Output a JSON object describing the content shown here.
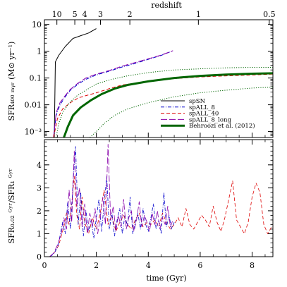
{
  "chart_data": {
    "type": "line",
    "top_axis": {
      "label": "redshift",
      "ticks": [
        {
          "z": 10,
          "t": 0.48,
          "label": "10"
        },
        {
          "z": 5,
          "t": 1.17,
          "label": "5"
        },
        {
          "z": 4,
          "t": 1.55,
          "label": "4"
        },
        {
          "z": 3,
          "t": 2.16,
          "label": "3"
        },
        {
          "z": 2,
          "t": 3.29,
          "label": "2"
        },
        {
          "z": 1,
          "t": 5.93,
          "label": "1"
        },
        {
          "z": 0.5,
          "t": 8.66,
          "label": "0.5"
        }
      ]
    },
    "x_axis": {
      "label": "time (Gyr)",
      "range": [
        0,
        8.8
      ],
      "ticks": [
        0,
        2,
        4,
        6,
        8
      ],
      "tick_labels": [
        "0",
        "2",
        "4",
        "6",
        "8"
      ]
    },
    "panels": [
      {
        "id": "top",
        "y_scale": "log",
        "y_range": [
          0.0006,
          15
        ],
        "y_ticks": [
          {
            "value": 10,
            "label": "10"
          },
          {
            "value": 1,
            "label": "1"
          },
          {
            "value": 0.1,
            "label": "0.1"
          },
          {
            "value": 0.01,
            "label": "0.01"
          },
          {
            "value": 0.001,
            "label": "10⁻³"
          }
        ],
        "ylabel": "SFR₄₀₀ ₘᵧᵣ (M⊙ yr⁻¹)",
        "legend": {
          "position": "bottom-right",
          "entries": [
            {
              "label": "spSN",
              "color": "#000000",
              "dash": "solid",
              "width": 1
            },
            {
              "label": "spALL_8",
              "color": "#0000cc",
              "dash": "dashdot",
              "width": 1
            },
            {
              "label": "spALL_40",
              "color": "#dd0000",
              "dash": "dashed",
              "width": 1
            },
            {
              "label": "spALL_8_long",
              "color": "#8800aa",
              "dash": "longdash",
              "width": 1
            },
            {
              "label": "Behroozi et al. (2012)",
              "color": "#006600",
              "dash": "solid",
              "width": 3
            }
          ]
        },
        "series": [
          {
            "name": "spSN",
            "color": "#000000",
            "dash": "solid",
            "width": 1,
            "x": [
              0.38,
              0.42,
              0.55,
              0.8,
              1.1,
              1.4,
              1.7,
              2.0
            ],
            "y": [
              0.0006,
              0.4,
              0.7,
              1.5,
              3.0,
              3.8,
              4.8,
              7.0
            ]
          },
          {
            "name": "spALL_8",
            "color": "#0000cc",
            "dash": "dashdot",
            "width": 1,
            "x": [
              0.35,
              0.45,
              0.6,
              0.8,
              1.0,
              1.3,
              1.6,
              2.0,
              2.5,
              3.0,
              3.5,
              4.0,
              4.5,
              4.9
            ],
            "y": [
              0.0006,
              0.004,
              0.01,
              0.02,
              0.035,
              0.06,
              0.09,
              0.13,
              0.18,
              0.26,
              0.35,
              0.5,
              0.7,
              1.0
            ]
          },
          {
            "name": "spALL_8_long",
            "color": "#8800aa",
            "dash": "longdash",
            "width": 1,
            "x": [
              0.35,
              0.45,
              0.6,
              0.8,
              1.0,
              1.3,
              1.6,
              2.0,
              2.5,
              3.0,
              3.5,
              4.0,
              4.5,
              4.95
            ],
            "y": [
              0.0006,
              0.005,
              0.012,
              0.022,
              0.038,
              0.065,
              0.1,
              0.14,
              0.19,
              0.28,
              0.38,
              0.52,
              0.72,
              1.05
            ]
          },
          {
            "name": "spALL_40",
            "color": "#dd0000",
            "dash": "dashed",
            "width": 1,
            "x": [
              0.35,
              0.5,
              0.7,
              1.0,
              1.3,
              1.6,
              2.0,
              2.5,
              3.0,
              4.0,
              5.0,
              6.0,
              7.0,
              8.0,
              8.8
            ],
            "y": [
              0.0006,
              0.003,
              0.007,
              0.012,
              0.018,
              0.022,
              0.028,
              0.04,
              0.055,
              0.075,
              0.095,
              0.11,
              0.12,
              0.13,
              0.14
            ]
          },
          {
            "name": "Behroozi et al. (2012)",
            "color": "#006600",
            "dash": "solid",
            "width": 3,
            "x": [
              0.75,
              0.9,
              1.1,
              1.4,
              1.8,
              2.2,
              2.7,
              3.2,
              4.0,
              5.0,
              6.0,
              7.0,
              8.0,
              8.8
            ],
            "y": [
              0.0006,
              0.0015,
              0.004,
              0.008,
              0.015,
              0.025,
              0.04,
              0.055,
              0.075,
              0.1,
              0.12,
              0.135,
              0.145,
              0.15
            ]
          },
          {
            "name": "Behroozi upper",
            "color": "#006600",
            "dash": "dotted",
            "width": 1,
            "x": [
              0.45,
              0.55,
              0.7,
              0.9,
              1.2,
              1.6,
              2.0,
              2.6,
              3.2,
              4.0,
              5.0,
              6.0,
              7.0,
              8.0,
              8.8
            ],
            "y": [
              0.0006,
              0.002,
              0.005,
              0.01,
              0.02,
              0.035,
              0.06,
              0.09,
              0.12,
              0.16,
              0.2,
              0.22,
              0.24,
              0.25,
              0.25
            ]
          },
          {
            "name": "Behroozi lower",
            "color": "#006600",
            "dash": "dotted",
            "width": 1,
            "x": [
              1.75,
              2.0,
              2.3,
              2.7,
              3.2,
              4.0,
              5.0,
              6.0,
              7.0,
              8.0,
              8.8
            ],
            "y": [
              0.0006,
              0.001,
              0.002,
              0.004,
              0.007,
              0.012,
              0.02,
              0.028,
              0.035,
              0.042,
              0.046
            ]
          }
        ]
      },
      {
        "id": "bottom",
        "y_scale": "linear",
        "y_range": [
          0,
          5.1
        ],
        "y_ticks": [
          {
            "value": 0,
            "label": "0"
          },
          {
            "value": 1,
            "label": "1"
          },
          {
            "value": 2,
            "label": "2"
          },
          {
            "value": 3,
            "label": "3"
          },
          {
            "value": 4,
            "label": "4"
          }
        ],
        "ylabel": "SFR₀.₀₂ ᴳʸʳ/SFR₁ ᴳʸʳ",
        "series": [
          {
            "name": "spALL_40",
            "color": "#dd0000",
            "dash": "dashed",
            "width": 0.8,
            "x": [
              0.2,
              0.4,
              0.55,
              0.65,
              0.75,
              0.85,
              0.95,
              1.05,
              1.15,
              1.25,
              1.35,
              1.45,
              1.55,
              1.7,
              1.85,
              2.0,
              2.15,
              2.3,
              2.45,
              2.6,
              2.75,
              2.9,
              3.05,
              3.2,
              3.35,
              3.5,
              3.65,
              3.8,
              3.95,
              4.1,
              4.25,
              4.4,
              4.55,
              4.7,
              4.85,
              5.0,
              5.15,
              5.3,
              5.45,
              5.6,
              5.75,
              5.9,
              6.05,
              6.2,
              6.35,
              6.5,
              6.65,
              6.8,
              6.95,
              7.1,
              7.25,
              7.4,
              7.55,
              7.7,
              7.85,
              8.0,
              8.15,
              8.3,
              8.45,
              8.6,
              8.75
            ],
            "y": [
              0.0,
              0.2,
              0.5,
              0.9,
              1.3,
              1.9,
              1.4,
              2.3,
              3.5,
              1.8,
              1.2,
              2.6,
              1.5,
              1.0,
              1.7,
              1.2,
              1.9,
              2.9,
              1.4,
              1.8,
              1.1,
              1.5,
              1.8,
              1.4,
              1.2,
              1.6,
              1.9,
              1.3,
              1.5,
              1.4,
              1.6,
              1.3,
              1.9,
              1.5,
              1.2,
              1.4,
              1.7,
              1.3,
              2.1,
              1.4,
              1.2,
              1.5,
              1.8,
              1.6,
              1.3,
              2.2,
              1.5,
              1.1,
              1.7,
              2.5,
              3.3,
              1.6,
              1.3,
              1.0,
              1.5,
              2.6,
              3.2,
              2.8,
              1.4,
              1.0,
              1.3
            ]
          },
          {
            "name": "spALL_8",
            "color": "#0000cc",
            "dash": "dashdot",
            "width": 0.8,
            "x": [
              0.2,
              0.35,
              0.5,
              0.6,
              0.7,
              0.8,
              0.9,
              1.0,
              1.1,
              1.2,
              1.3,
              1.4,
              1.5,
              1.6,
              1.7,
              1.8,
              1.9,
              2.0,
              2.1,
              2.2,
              2.3,
              2.4,
              2.5,
              2.6,
              2.7,
              2.8,
              2.9,
              3.0,
              3.1,
              3.2,
              3.3,
              3.4,
              3.5,
              3.6,
              3.7,
              3.8,
              3.9,
              4.0,
              4.1,
              4.2,
              4.3,
              4.4,
              4.5,
              4.6,
              4.7,
              4.8,
              4.9,
              5.0
            ],
            "y": [
              0.0,
              0.1,
              0.4,
              0.9,
              1.5,
              1.0,
              2.4,
              1.2,
              3.2,
              4.8,
              1.4,
              2.8,
              0.9,
              2.0,
              1.1,
              1.6,
              0.8,
              1.7,
              2.5,
              1.1,
              2.3,
              3.5,
              1.2,
              1.9,
              0.9,
              1.6,
              2.1,
              1.0,
              1.8,
              1.3,
              2.6,
              1.0,
              1.5,
              1.9,
              1.2,
              2.1,
              1.4,
              1.1,
              1.7,
              2.3,
              1.2,
              1.6,
              1.0,
              2.8,
              1.3,
              1.8,
              1.2,
              1.5
            ]
          },
          {
            "name": "spALL_8_long",
            "color": "#8800aa",
            "dash": "longdash",
            "width": 0.8,
            "x": [
              0.2,
              0.35,
              0.5,
              0.65,
              0.75,
              0.85,
              0.95,
              1.05,
              1.15,
              1.25,
              1.35,
              1.45,
              1.55,
              1.65,
              1.75,
              1.85,
              1.95,
              2.05,
              2.15,
              2.25,
              2.35,
              2.45,
              2.55,
              2.65,
              2.75,
              2.85,
              2.95,
              3.05,
              3.15,
              3.25,
              3.35,
              3.45,
              3.55,
              3.65,
              3.75,
              3.85,
              3.95,
              4.05,
              4.15,
              4.25,
              4.35,
              4.45,
              4.55,
              4.65,
              4.75,
              4.85,
              4.95
            ],
            "y": [
              0.0,
              0.15,
              0.5,
              1.0,
              1.7,
              1.2,
              2.9,
              1.5,
              4.6,
              2.2,
              3.0,
              1.3,
              2.3,
              1.0,
              1.9,
              1.3,
              2.1,
              1.0,
              1.7,
              2.6,
              1.4,
              4.9,
              1.6,
              2.2,
              1.1,
              1.8,
              1.3,
              2.5,
              1.2,
              1.7,
              2.0,
              1.1,
              1.6,
              2.4,
              1.3,
              1.8,
              1.5,
              1.1,
              1.9,
              1.4,
              2.0,
              1.2,
              1.7,
              1.4,
              2.2,
              1.3,
              1.6
            ]
          }
        ]
      }
    ]
  }
}
